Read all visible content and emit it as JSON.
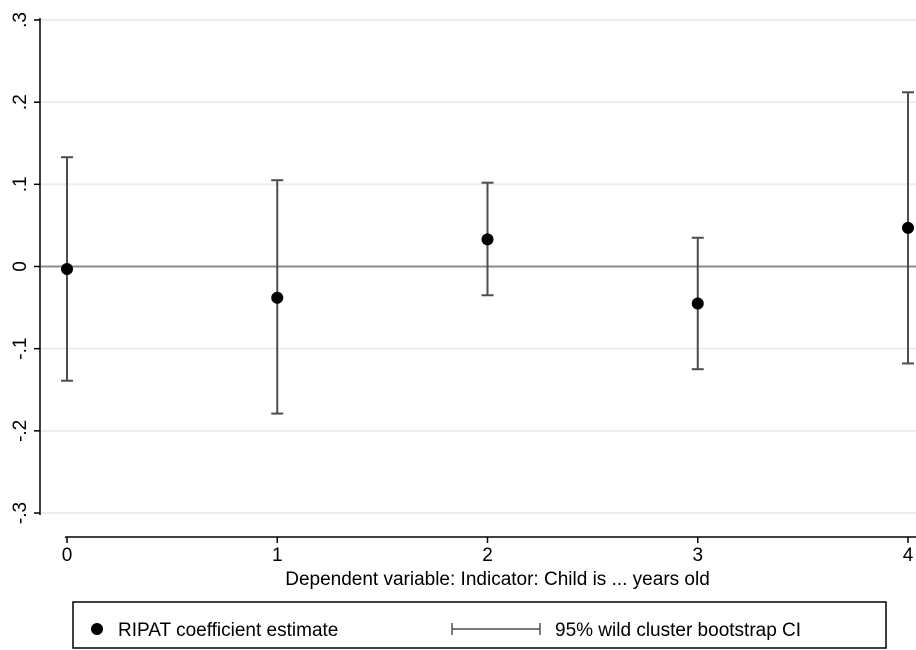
{
  "chart_data": {
    "type": "scatter",
    "x": [
      0,
      1,
      2,
      3,
      4
    ],
    "series": [
      {
        "name": "RIPAT coefficient estimate",
        "values": [
          -0.003,
          -0.038,
          0.033,
          -0.045,
          0.047
        ]
      }
    ],
    "ci": {
      "name": "95% wild cluster bootstrap CI",
      "lower": [
        -0.139,
        -0.179,
        -0.035,
        -0.125,
        -0.118
      ],
      "upper": [
        0.133,
        0.105,
        0.102,
        0.035,
        0.212
      ]
    },
    "xticks": [
      "0",
      "1",
      "2",
      "3",
      "4"
    ],
    "yticks": [
      "-.3",
      "-.2",
      "-.1",
      "0",
      ".1",
      ".2",
      ".3"
    ],
    "xlim": [
      0,
      4
    ],
    "ylim": [
      -0.3,
      0.3
    ],
    "xlabel": "Dependent variable: Indicator: Child is ... years old",
    "ylabel": "",
    "grid": true,
    "reference_line_y": 0,
    "legend_position": "bottom",
    "colors": {
      "marker": "#000000",
      "ci": "#4d4d4d",
      "grid": "#e8eef2",
      "zero_line": "#8c8c8c"
    }
  }
}
